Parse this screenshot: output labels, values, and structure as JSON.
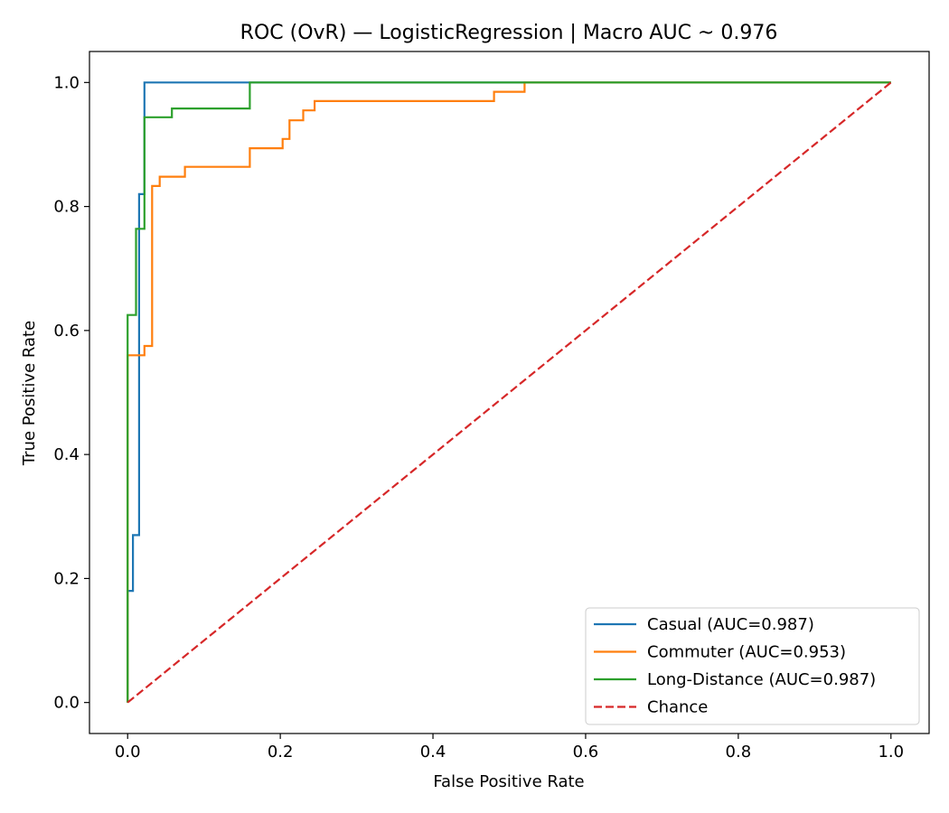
{
  "chart_data": {
    "type": "line",
    "title": "ROC (OvR) — LogisticRegression | Macro AUC ~ 0.976",
    "xlabel": "False Positive Rate",
    "ylabel": "True Positive Rate",
    "xlim": [
      -0.05,
      1.05
    ],
    "ylim": [
      -0.05,
      1.05
    ],
    "xticks": [
      0.0,
      0.2,
      0.4,
      0.6,
      0.8,
      1.0
    ],
    "yticks": [
      0.0,
      0.2,
      0.4,
      0.6,
      0.8,
      1.0
    ],
    "xtick_labels": [
      "0.0",
      "0.2",
      "0.4",
      "0.6",
      "0.8",
      "1.0"
    ],
    "ytick_labels": [
      "0.0",
      "0.2",
      "0.4",
      "0.6",
      "0.8",
      "1.0"
    ],
    "grid": false,
    "legend_position": "lower-right",
    "series": [
      {
        "name": "Casual (AUC=0.987)",
        "color": "#1f77b4",
        "dash": "solid",
        "x": [
          0.0,
          0.0,
          0.0,
          0.007,
          0.007,
          0.015,
          0.015,
          0.022,
          0.022,
          0.16,
          0.16,
          1.0
        ],
        "y": [
          0.0,
          0.18,
          0.18,
          0.18,
          0.27,
          0.27,
          0.82,
          0.82,
          1.0,
          1.0,
          1.0,
          1.0
        ]
      },
      {
        "name": "Commuter (AUC=0.953)",
        "color": "#ff7f0e",
        "dash": "solid",
        "x": [
          0.0,
          0.0,
          0.022,
          0.022,
          0.032,
          0.032,
          0.042,
          0.042,
          0.075,
          0.075,
          0.16,
          0.16,
          0.203,
          0.203,
          0.212,
          0.212,
          0.22,
          0.22,
          0.23,
          0.23,
          0.245,
          0.245,
          0.48,
          0.48,
          0.52,
          0.52,
          1.0
        ],
        "y": [
          0.0,
          0.56,
          0.56,
          0.575,
          0.575,
          0.833,
          0.833,
          0.848,
          0.848,
          0.864,
          0.864,
          0.894,
          0.894,
          0.909,
          0.909,
          0.939,
          0.939,
          0.939,
          0.939,
          0.955,
          0.955,
          0.97,
          0.97,
          0.985,
          0.985,
          1.0,
          1.0
        ]
      },
      {
        "name": "Long-Distance (AUC=0.987)",
        "color": "#2ca02c",
        "dash": "solid",
        "x": [
          0.0,
          0.0,
          0.011,
          0.011,
          0.022,
          0.022,
          0.058,
          0.058,
          0.16,
          0.16,
          1.0
        ],
        "y": [
          0.0,
          0.625,
          0.625,
          0.764,
          0.764,
          0.944,
          0.944,
          0.958,
          0.958,
          1.0,
          1.0
        ]
      },
      {
        "name": "Chance",
        "color": "#d62728",
        "dash": "dashed",
        "x": [
          0.0,
          1.0
        ],
        "y": [
          0.0,
          1.0
        ]
      }
    ]
  }
}
